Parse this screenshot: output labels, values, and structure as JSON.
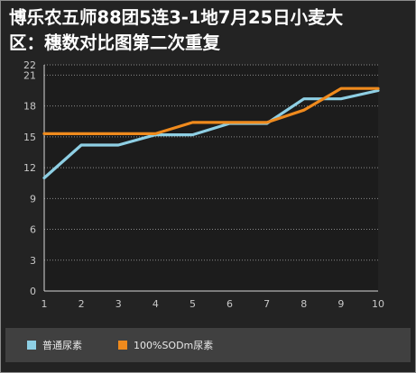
{
  "chart_data": {
    "type": "line",
    "title_lines": [
      "博乐农五师88团5连3-1地7月25日小麦大",
      "区：穗数对比图第二次重复"
    ],
    "xlabel": "",
    "ylabel": "",
    "x": [
      1,
      2,
      3,
      4,
      5,
      6,
      7,
      8,
      9,
      10
    ],
    "x_tick_labels": [
      "1",
      "2",
      "3",
      "4",
      "5",
      "6",
      "7",
      "8",
      "9",
      "10"
    ],
    "ylim": [
      0,
      22
    ],
    "y_ticks": [
      0,
      3,
      6,
      9,
      12,
      15,
      18,
      21,
      22
    ],
    "grid": true,
    "legend_position": "bottom",
    "series": [
      {
        "name": "普通尿素",
        "color": "#8ecfe4",
        "values": [
          11,
          14.2,
          14.2,
          15.2,
          15.2,
          16.3,
          16.3,
          18.7,
          18.7,
          19.5
        ]
      },
      {
        "name": "100%SODm尿素",
        "color": "#ef8a1d",
        "values": [
          15.3,
          15.3,
          15.3,
          15.3,
          16.4,
          16.4,
          16.4,
          17.6,
          19.7,
          19.7
        ]
      }
    ]
  }
}
